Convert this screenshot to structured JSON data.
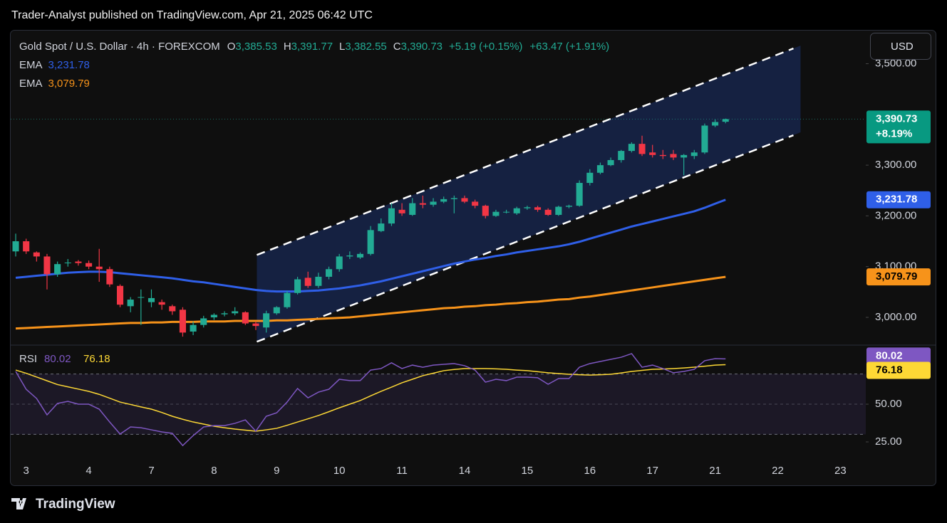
{
  "header": {
    "title": "Trader-Analyst published on TradingView.com, Apr 21, 2025 06:42 UTC"
  },
  "currency": "USD",
  "footer": {
    "brand": "TradingView"
  },
  "chart_data": [
    {
      "type": "candlestick",
      "title": "Gold Spot / U.S. Dollar · 4h · FOREXCOM",
      "ohlc_keys": [
        "O",
        "H",
        "L",
        "C"
      ],
      "ohlc_labels": [
        "3,385.53",
        "3,391.77",
        "3,382.55",
        "3,390.73"
      ],
      "change": "+5.19 (+0.15%)",
      "change_total": "+63.47 (+1.91%)",
      "up_color": "#22ab94",
      "down_color": "#f23645",
      "open": [
        3130,
        3150,
        3128,
        3120,
        3085,
        3108,
        3110,
        3107,
        3100,
        3095,
        3062,
        3022,
        3040,
        3030,
        3030,
        3022,
        3015,
        2972,
        2985,
        3000,
        3006,
        3008,
        3010,
        2988,
        2980,
        3008,
        3020,
        3048,
        3078,
        3062,
        3080,
        3095,
        3120,
        3118,
        3125,
        3170,
        3185,
        3212,
        3202,
        3225,
        3222,
        3228,
        3233,
        3235,
        3228,
        3220,
        3200,
        3208,
        3205,
        3215,
        3217,
        3212,
        3202,
        3218,
        3220,
        3265,
        3285,
        3300,
        3310,
        3328,
        3342,
        3325,
        3320,
        3322,
        3315,
        3318,
        3325,
        3378,
        3385.53
      ],
      "high": [
        3165,
        3155,
        3130,
        3125,
        3110,
        3115,
        3113,
        3112,
        3135,
        3100,
        3065,
        3040,
        3055,
        3055,
        3035,
        3025,
        3020,
        2992,
        3003,
        3008,
        3012,
        3020,
        3012,
        2992,
        3013,
        3022,
        3052,
        3080,
        3090,
        3088,
        3100,
        3125,
        3130,
        3128,
        3180,
        3195,
        3225,
        3225,
        3235,
        3240,
        3235,
        3238,
        3240,
        3240,
        3232,
        3222,
        3212,
        3212,
        3218,
        3220,
        3220,
        3215,
        3220,
        3222,
        3270,
        3292,
        3305,
        3315,
        3330,
        3345,
        3358,
        3340,
        3330,
        3330,
        3322,
        3330,
        3382,
        3390,
        3391.77
      ],
      "low": [
        3120,
        3125,
        3110,
        3055,
        3080,
        3100,
        3102,
        3095,
        3070,
        3060,
        3020,
        3010,
        2985,
        3020,
        3015,
        3005,
        2962,
        2965,
        2980,
        2995,
        3002,
        3004,
        2985,
        2975,
        2970,
        3005,
        3017,
        3045,
        3058,
        3058,
        3075,
        3090,
        3115,
        3115,
        3122,
        3168,
        3180,
        3200,
        3200,
        3215,
        3218,
        3225,
        3205,
        3225,
        3215,
        3195,
        3198,
        3205,
        3202,
        3212,
        3208,
        3200,
        3200,
        3215,
        3218,
        3260,
        3282,
        3298,
        3305,
        3325,
        3318,
        3315,
        3312,
        3310,
        3280,
        3312,
        3322,
        3375,
        3382.55
      ],
      "close": [
        3150,
        3130,
        3120,
        3085,
        3105,
        3108,
        3107,
        3100,
        3095,
        3065,
        3025,
        3035,
        3040,
        3038,
        3025,
        3012,
        2970,
        2985,
        2998,
        3005,
        3008,
        3012,
        2988,
        2983,
        3008,
        3020,
        3048,
        3075,
        3062,
        3080,
        3095,
        3120,
        3122,
        3125,
        3172,
        3185,
        3215,
        3205,
        3225,
        3222,
        3228,
        3233,
        3235,
        3228,
        3220,
        3200,
        3208,
        3208,
        3215,
        3217,
        3212,
        3202,
        3218,
        3220,
        3265,
        3285,
        3300,
        3310,
        3328,
        3342,
        3322,
        3320,
        3318,
        3315,
        3320,
        3325,
        3378,
        3385,
        3390.73
      ],
      "last_change": "+8.19%",
      "series": [
        {
          "name": "EMA",
          "color": "#2f5fe8",
          "value_label": "3,231.78",
          "values": [
            3078,
            3080,
            3082,
            3084,
            3086,
            3088,
            3089,
            3090,
            3090,
            3089,
            3087,
            3085,
            3083,
            3081,
            3079,
            3077,
            3074,
            3071,
            3069,
            3066,
            3063,
            3060,
            3057,
            3054,
            3052,
            3051,
            3051,
            3051,
            3052,
            3053,
            3055,
            3057,
            3060,
            3063,
            3067,
            3071,
            3076,
            3081,
            3086,
            3091,
            3096,
            3101,
            3106,
            3110,
            3114,
            3117,
            3121,
            3124,
            3128,
            3131,
            3134,
            3137,
            3140,
            3144,
            3149,
            3155,
            3161,
            3167,
            3173,
            3179,
            3184,
            3189,
            3194,
            3199,
            3204,
            3209,
            3216,
            3224,
            3231.78
          ]
        },
        {
          "name": "EMA",
          "color": "#f7931a",
          "value_label": "3,079.79",
          "values": [
            2978,
            2979,
            2980,
            2981,
            2982,
            2983,
            2984,
            2985,
            2986,
            2987,
            2988,
            2989,
            2989,
            2990,
            2990,
            2991,
            2991,
            2991,
            2992,
            2992,
            2992,
            2993,
            2993,
            2993,
            2993,
            2994,
            2994,
            2995,
            2996,
            2997,
            2998,
            2999,
            3000,
            3002,
            3004,
            3006,
            3008,
            3010,
            3012,
            3014,
            3016,
            3018,
            3019,
            3021,
            3022,
            3024,
            3025,
            3027,
            3028,
            3030,
            3031,
            3033,
            3035,
            3036,
            3039,
            3041,
            3044,
            3047,
            3050,
            3053,
            3056,
            3059,
            3062,
            3065,
            3068,
            3071,
            3074,
            3077,
            3079.79
          ]
        }
      ],
      "channel": {
        "color": "#16244a",
        "upper": [
          [
            23.1,
            3123
          ],
          [
            74.5,
            3530
          ]
        ],
        "lower": [
          [
            23.1,
            2952
          ],
          [
            74.5,
            3359
          ]
        ]
      },
      "xlim": [
        -0.48,
        81.43
      ],
      "xticks": [
        {
          "value": 1,
          "label": "3"
        },
        {
          "value": 7,
          "label": "4"
        },
        {
          "value": 13,
          "label": "7"
        },
        {
          "value": 19,
          "label": "8"
        },
        {
          "value": 25,
          "label": "9"
        },
        {
          "value": 31,
          "label": "10"
        },
        {
          "value": 37,
          "label": "11"
        },
        {
          "value": 43,
          "label": "14"
        },
        {
          "value": 49,
          "label": "15"
        },
        {
          "value": 55,
          "label": "16"
        },
        {
          "value": 61,
          "label": "17"
        },
        {
          "value": 67,
          "label": "21"
        },
        {
          "value": 73,
          "label": "22"
        },
        {
          "value": 79,
          "label": "23"
        }
      ],
      "ylim": [
        2949.5,
        3566.6
      ],
      "yticks": [
        {
          "value": 3000,
          "label": "3,000.00"
        },
        {
          "value": 3100,
          "label": "3,100.00"
        },
        {
          "value": 3200,
          "label": "3,200.00"
        },
        {
          "value": 3300,
          "label": "3,300.00"
        },
        {
          "value": 3500,
          "label": "3,500.00"
        }
      ],
      "grid": false
    },
    {
      "type": "line",
      "title": "RSI",
      "band_color": "#1c1826",
      "series": [
        {
          "color": "#7e57c2",
          "value_label": "80.02",
          "values": [
            71.7,
            59.9,
            53.8,
            42.9,
            50.5,
            51.9,
            50,
            50,
            46.7,
            38.2,
            30.2,
            34.9,
            34.4,
            33,
            31.6,
            30.7,
            22.6,
            29.2,
            34.9,
            35.8,
            35.8,
            37.3,
            39.6,
            32.1,
            42,
            44.3,
            51.4,
            60.4,
            54.2,
            58,
            59.9,
            66.5,
            65.6,
            65.6,
            72.6,
            73.6,
            77.4,
            73.6,
            75.9,
            74.5,
            75.9,
            76.4,
            76.9,
            75.5,
            72.6,
            64.6,
            66.5,
            65.6,
            67.9,
            67.9,
            67.5,
            63.2,
            67,
            67,
            74.5,
            76.9,
            78.3,
            79.7,
            81.1,
            83.5,
            74.5,
            75.9,
            73.6,
            70.8,
            71.7,
            73.1,
            78.8,
            80.2,
            80.02
          ]
        },
        {
          "color": "#fdd835",
          "value_label": "76.18",
          "values": [
            72.6,
            70.5,
            68,
            65.5,
            63,
            61.5,
            60,
            58.5,
            56.5,
            54,
            51.4,
            49.8,
            48.2,
            46.7,
            44.5,
            42,
            40,
            38.2,
            36.8,
            35.4,
            34.4,
            33.5,
            32.8,
            32.1,
            33,
            34,
            36,
            38.2,
            40.3,
            42.5,
            45,
            47.6,
            50,
            52.4,
            55.5,
            58.5,
            61.3,
            64.2,
            66.5,
            68.9,
            70.5,
            72.2,
            73,
            73.6,
            73.6,
            73.6,
            73.4,
            73.1,
            72.6,
            72.2,
            71.5,
            70.8,
            70.3,
            69.8,
            69.5,
            69.3,
            69.5,
            69.8,
            70.7,
            71.7,
            72.4,
            73.1,
            73.3,
            73.6,
            74,
            74.5,
            75.2,
            75.9,
            76.18
          ]
        }
      ],
      "levels": [
        30,
        50,
        70
      ],
      "ylim": [
        13.7,
        88.2
      ],
      "yticks": [
        {
          "value": 25,
          "label": "25.00"
        },
        {
          "value": 50,
          "label": "50.00"
        }
      ]
    }
  ]
}
